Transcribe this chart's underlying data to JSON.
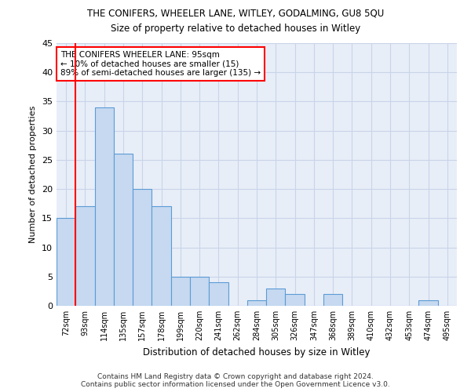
{
  "title": "THE CONIFERS, WHEELER LANE, WITLEY, GODALMING, GU8 5QU",
  "subtitle": "Size of property relative to detached houses in Witley",
  "xlabel": "Distribution of detached houses by size in Witley",
  "ylabel": "Number of detached properties",
  "categories": [
    "72sqm",
    "93sqm",
    "114sqm",
    "135sqm",
    "157sqm",
    "178sqm",
    "199sqm",
    "220sqm",
    "241sqm",
    "262sqm",
    "284sqm",
    "305sqm",
    "326sqm",
    "347sqm",
    "368sqm",
    "389sqm",
    "410sqm",
    "432sqm",
    "453sqm",
    "474sqm",
    "495sqm"
  ],
  "values": [
    15,
    17,
    34,
    26,
    20,
    17,
    5,
    5,
    4,
    0,
    1,
    3,
    2,
    0,
    2,
    0,
    0,
    0,
    0,
    1,
    0
  ],
  "bar_color": "#c6d9f0",
  "bar_edge_color": "#5b9bd5",
  "marker_color": "#ff0000",
  "ylim": [
    0,
    45
  ],
  "yticks": [
    0,
    5,
    10,
    15,
    20,
    25,
    30,
    35,
    40,
    45
  ],
  "annotation_title": "THE CONIFERS WHEELER LANE: 95sqm",
  "annotation_line1": "← 10% of detached houses are smaller (15)",
  "annotation_line2": "89% of semi-detached houses are larger (135) →",
  "footer1": "Contains HM Land Registry data © Crown copyright and database right 2024.",
  "footer2": "Contains public sector information licensed under the Open Government Licence v3.0.",
  "background_color": "#ffffff",
  "grid_color": "#c8d4e8",
  "ax_bg_color": "#e8eef8"
}
